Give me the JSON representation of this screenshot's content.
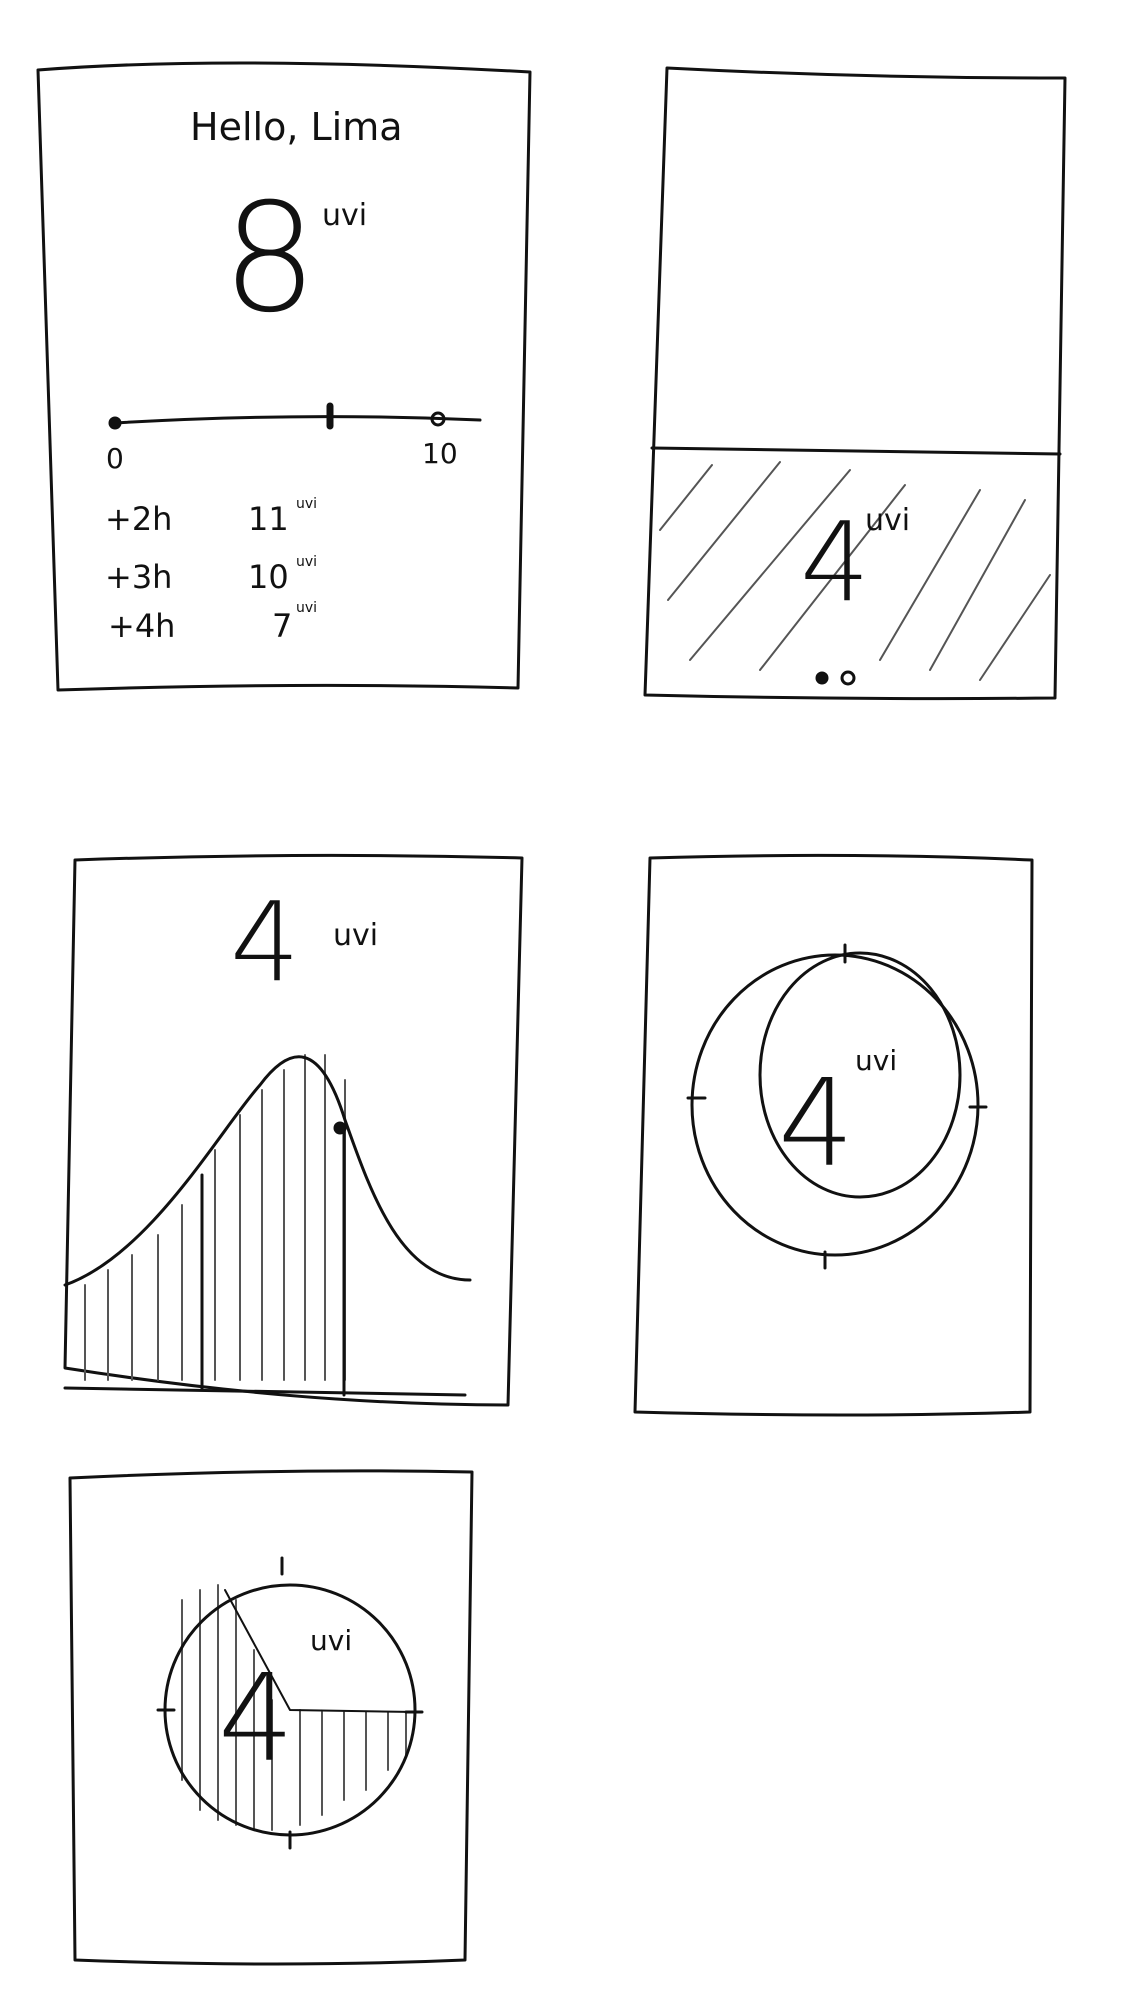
{
  "frames": [
    {
      "greeting": "Hello, Lima",
      "uv_value": "8",
      "uv_unit": "uvi",
      "scale_min": "0",
      "scale_max": "10",
      "forecast": [
        {
          "offset": "+2h",
          "value": "11",
          "unit": "uvi"
        },
        {
          "offset": "+3h",
          "value": "10",
          "unit": "uvi"
        },
        {
          "offset": "+4h",
          "value": "7",
          "unit": "uvi"
        }
      ]
    },
    {
      "uv_value": "4",
      "uv_unit": "uvi"
    },
    {
      "uv_value": "4",
      "uv_unit": "uvi"
    },
    {
      "uv_value": "4",
      "uv_unit": "uvi"
    },
    {
      "uv_value": "4",
      "uv_unit": "uvi"
    }
  ],
  "ink_color": "#111111",
  "hatch_color": "#555555"
}
